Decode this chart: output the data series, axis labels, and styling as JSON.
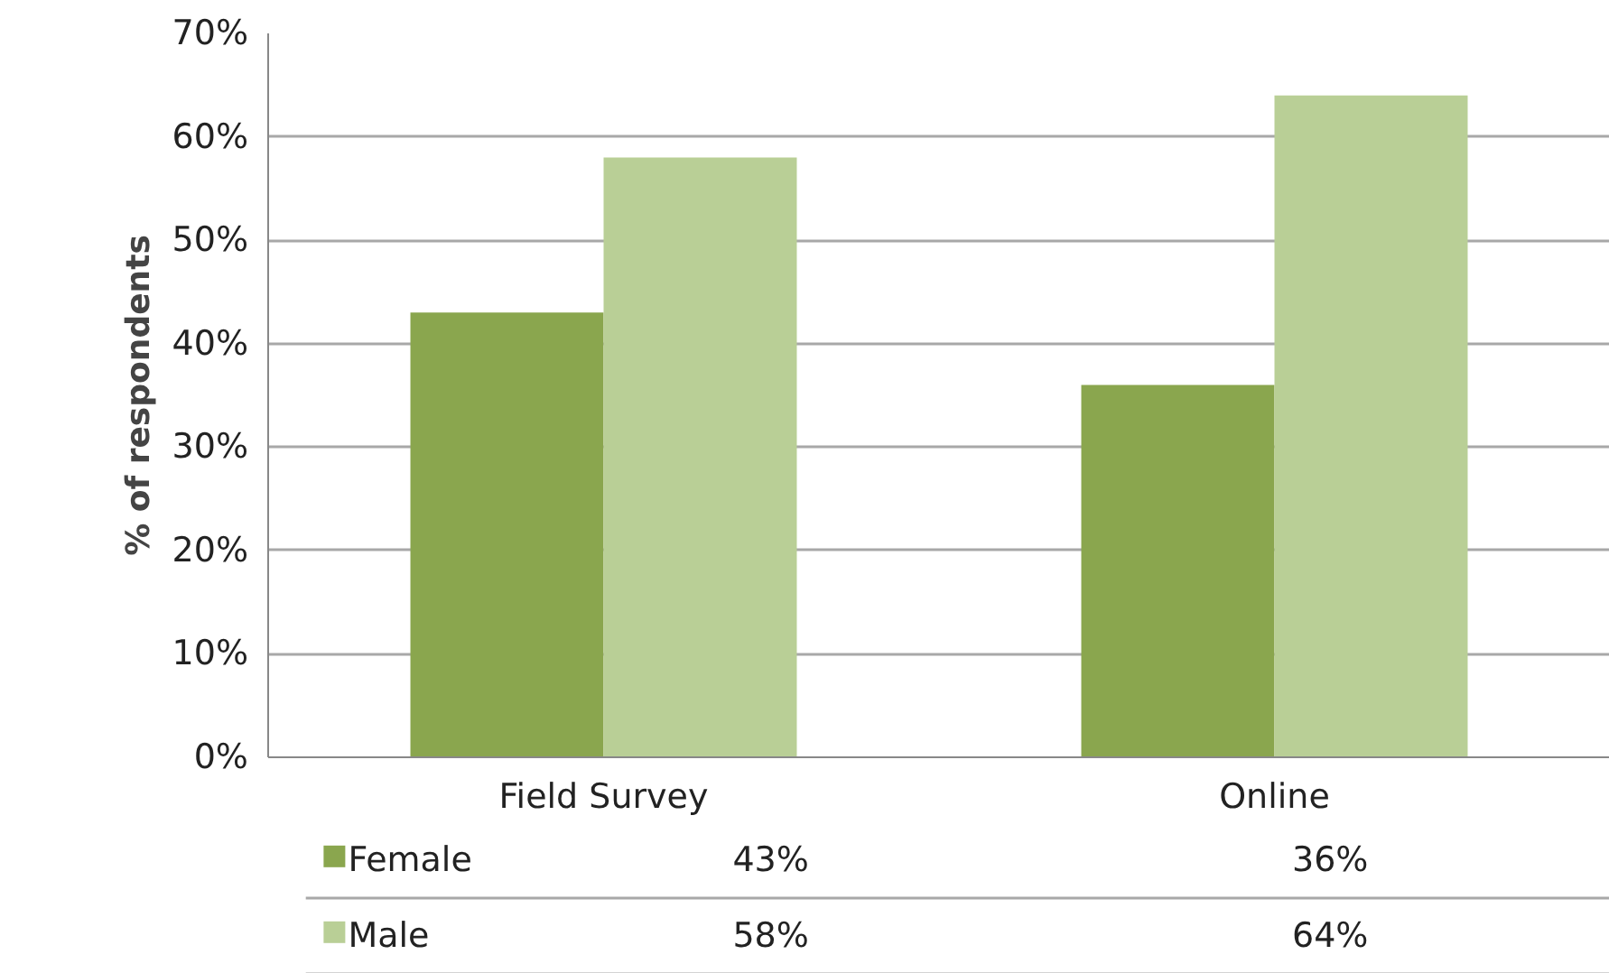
{
  "chart_data": {
    "type": "bar",
    "ylabel": "% of respondents",
    "categories": [
      "Field Survey",
      "Online"
    ],
    "series": [
      {
        "name": "Female",
        "color": "#8aa64e",
        "values": [
          43,
          36
        ],
        "value_labels": [
          "43%",
          "36%"
        ]
      },
      {
        "name": "Male",
        "color": "#b9cf96",
        "values": [
          58,
          64
        ],
        "value_labels": [
          "58%",
          "64%"
        ]
      }
    ],
    "ylim": [
      0,
      70
    ],
    "yticks": [
      {
        "value": 0,
        "label": "0%"
      },
      {
        "value": 10,
        "label": "10%"
      },
      {
        "value": 20,
        "label": "20%"
      },
      {
        "value": 30,
        "label": "30%"
      },
      {
        "value": 40,
        "label": "40%"
      },
      {
        "value": 50,
        "label": "50%"
      },
      {
        "value": 60,
        "label": "60%"
      },
      {
        "value": 70,
        "label": "70%"
      }
    ],
    "grid": "y",
    "legend": "bottom"
  }
}
